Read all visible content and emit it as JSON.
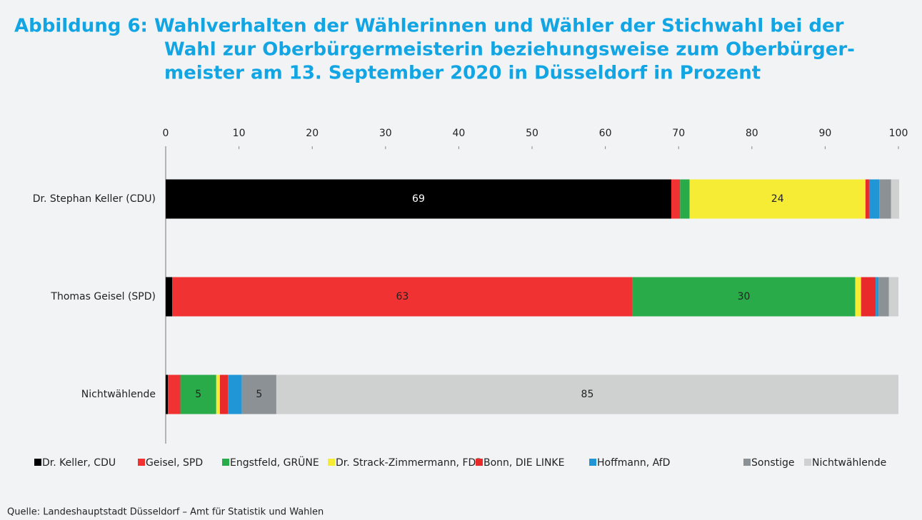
{
  "chart_data": {
    "type": "stacked-bar-horizontal",
    "title": [
      "Abbildung 6: Wahlverhalten der Wählerinnen und Wähler der Stichwahl bei der",
      "Wahl zur Oberbürgermeisterin beziehungsweise zum Oberbürger-",
      "meister am 13. September 2020 in Düsseldorf in Prozent"
    ],
    "categories": [
      "Dr. Stephan Keller (CDU)",
      "Thomas Geisel  (SPD)",
      "Nichtwählende"
    ],
    "series": [
      {
        "name": "Dr. Keller, CDU",
        "color": "#000000",
        "values": [
          69,
          0.9,
          0.3
        ],
        "value_labels": [
          "69",
          null,
          null
        ]
      },
      {
        "name": "Geisel, SPD",
        "color": "#f03232",
        "values": [
          1.2,
          62.8,
          1.7
        ],
        "value_labels": [
          null,
          "63",
          null
        ]
      },
      {
        "name": "Engstfeld, GRÜNE",
        "color": "#2aab4a",
        "values": [
          1.3,
          30.4,
          4.9
        ],
        "value_labels": [
          null,
          "30",
          "5"
        ]
      },
      {
        "name": "Dr. Strack-Zimmermann, FDP",
        "color": "#f6ec36",
        "values": [
          24,
          0.8,
          0.5
        ],
        "value_labels": [
          "24",
          null,
          null
        ]
      },
      {
        "name": "Bonn, DIE LINKE",
        "color": "#e82a2a",
        "values": [
          0.5,
          2.0,
          1.1
        ],
        "value_labels": [
          null,
          null,
          null
        ]
      },
      {
        "name": "Hoffmann, AfD",
        "color": "#2196d6",
        "values": [
          1.4,
          0.4,
          1.9
        ],
        "value_labels": [
          null,
          null,
          null
        ]
      },
      {
        "name": "Sonstige",
        "color": "#8b9194",
        "values": [
          1.6,
          1.4,
          4.7
        ],
        "value_labels": [
          null,
          null,
          "5"
        ]
      },
      {
        "name": "Nichtwählende",
        "color": "#cfd0d0",
        "values": [
          1.1,
          1.3,
          84.9
        ],
        "value_labels": [
          null,
          null,
          "85"
        ]
      }
    ],
    "xlim": [
      0,
      100
    ],
    "xticks": [
      0,
      10,
      20,
      30,
      40,
      50,
      60,
      70,
      80,
      90,
      100
    ],
    "source": "Quelle: Landeshauptstadt Düsseldorf – Amt für Statistik und Wahlen"
  }
}
